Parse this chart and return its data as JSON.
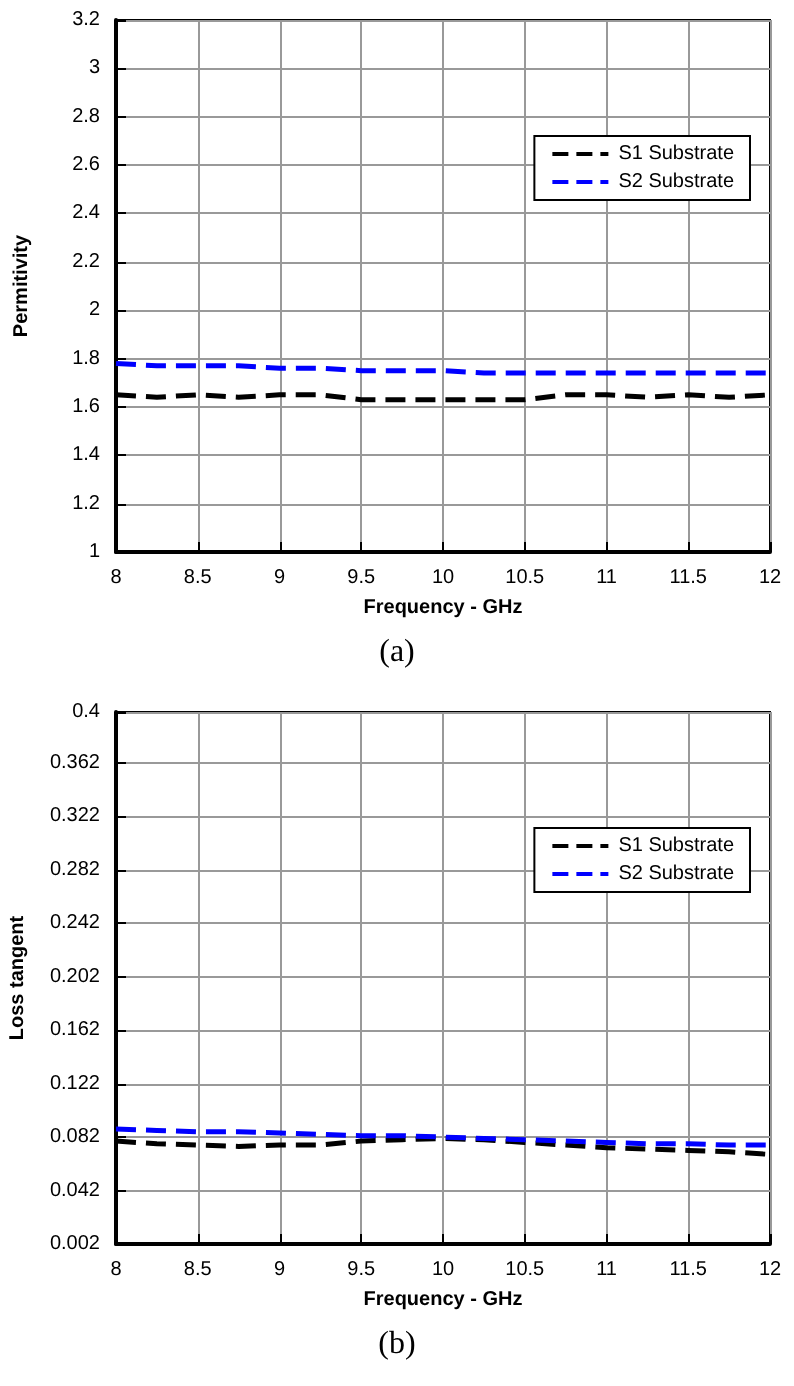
{
  "chart_data": [
    {
      "type": "line",
      "xlabel": "Frequency - GHz",
      "ylabel": "Permitivity",
      "annotations": [
        "(a)"
      ],
      "x": [
        8,
        8.25,
        8.5,
        8.75,
        9,
        9.25,
        9.5,
        9.75,
        10,
        10.25,
        10.5,
        10.75,
        11,
        11.25,
        11.5,
        11.75,
        12
      ],
      "series": [
        {
          "name": "S1 Substrate",
          "color": "#000000",
          "values": [
            1.65,
            1.64,
            1.65,
            1.64,
            1.65,
            1.65,
            1.63,
            1.63,
            1.63,
            1.63,
            1.63,
            1.65,
            1.65,
            1.64,
            1.65,
            1.64,
            1.65
          ]
        },
        {
          "name": "S2 Substrate",
          "color": "#0000ff",
          "values": [
            1.78,
            1.77,
            1.77,
            1.77,
            1.76,
            1.76,
            1.75,
            1.75,
            1.75,
            1.74,
            1.74,
            1.74,
            1.74,
            1.74,
            1.74,
            1.74,
            1.74
          ]
        }
      ],
      "xlim": [
        8,
        12
      ],
      "xticks": [
        8,
        8.5,
        9,
        9.5,
        10,
        10.5,
        11,
        11.5,
        12
      ],
      "ylim": [
        1,
        3.2
      ],
      "yticks": [
        1,
        1.2,
        1.4,
        1.6,
        1.8,
        2,
        2.2,
        2.4,
        2.6,
        2.8,
        3,
        3.2
      ],
      "grid": true,
      "legend": "top right",
      "line_style": "dashed",
      "marker": "none"
    },
    {
      "type": "line",
      "xlabel": "Frequency - GHz",
      "ylabel": "Loss tangent",
      "annotations": [
        "(b)"
      ],
      "x": [
        8,
        8.25,
        8.5,
        8.75,
        9,
        9.25,
        9.5,
        9.75,
        10,
        10.25,
        10.5,
        10.75,
        11,
        11.25,
        11.5,
        11.75,
        12
      ],
      "series": [
        {
          "name": "S1 Substrate",
          "color": "#000000",
          "values": [
            0.079,
            0.077,
            0.076,
            0.075,
            0.076,
            0.076,
            0.079,
            0.08,
            0.081,
            0.08,
            0.078,
            0.076,
            0.074,
            0.073,
            0.072,
            0.071,
            0.069
          ]
        },
        {
          "name": "S2 Substrate",
          "color": "#0000ff",
          "values": [
            0.088,
            0.087,
            0.086,
            0.086,
            0.085,
            0.084,
            0.083,
            0.083,
            0.082,
            0.081,
            0.08,
            0.079,
            0.078,
            0.077,
            0.077,
            0.076,
            0.076
          ]
        }
      ],
      "xlim": [
        8,
        12
      ],
      "xticks": [
        8,
        8.5,
        9,
        9.5,
        10,
        10.5,
        11,
        11.5,
        12
      ],
      "ylim": [
        0.002,
        0.4
      ],
      "yticks": [
        0.002,
        0.042,
        0.082,
        0.122,
        0.162,
        0.202,
        0.242,
        0.282,
        0.322,
        0.362,
        0.4
      ],
      "grid": true,
      "legend": "top right",
      "line_style": "dashed",
      "marker": "none"
    }
  ]
}
